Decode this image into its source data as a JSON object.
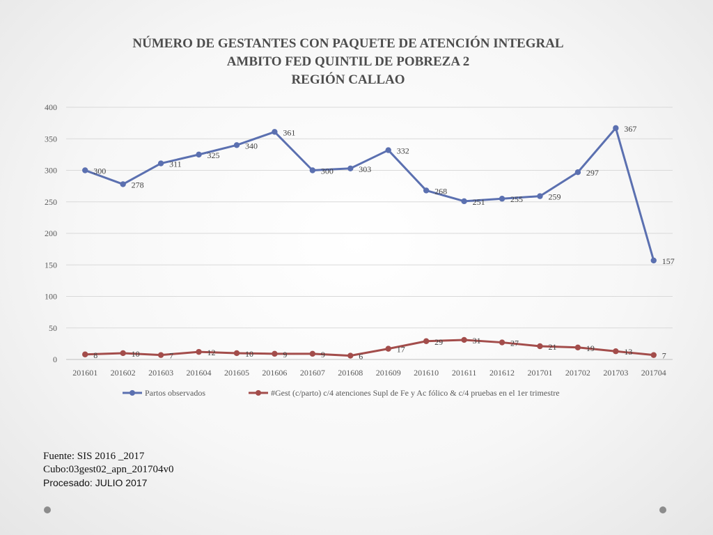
{
  "chart_data": {
    "type": "line",
    "title": [
      "NÚMERO DE GESTANTES CON PAQUETE DE ATENCIÓN INTEGRAL",
      "AMBITO FED QUINTIL DE POBREZA 2",
      "REGIÓN CALLAO"
    ],
    "categories": [
      "201601",
      "201602",
      "201603",
      "201604",
      "201605",
      "201606",
      "201607",
      "201608",
      "201609",
      "201610",
      "201611",
      "201612",
      "201701",
      "201702",
      "201703",
      "201704"
    ],
    "ylim": [
      0,
      400
    ],
    "yticks": [
      0,
      50,
      100,
      150,
      200,
      250,
      300,
      350,
      400
    ],
    "grid": true,
    "legend_position": "bottom",
    "series": [
      {
        "name": "Partos observados",
        "color": "#5b70b0",
        "values": [
          300,
          278,
          311,
          325,
          340,
          361,
          300,
          303,
          332,
          268,
          251,
          255,
          259,
          297,
          367,
          157
        ]
      },
      {
        "name": "#Gest (c/parto) c/4 atenciones Supl de Fe y Ac fólico & c/4 pruebas en el 1er trimestre",
        "color": "#a34d4b",
        "values": [
          8,
          10,
          7,
          12,
          10,
          9,
          9,
          6,
          17,
          29,
          31,
          27,
          21,
          19,
          13,
          7
        ]
      }
    ]
  },
  "footer": {
    "source": "Fuente: SIS 2016 _2017",
    "cube": "Cubo:03gest02_apn_201704v0",
    "processed": "Procesado: JULIO 2017"
  }
}
